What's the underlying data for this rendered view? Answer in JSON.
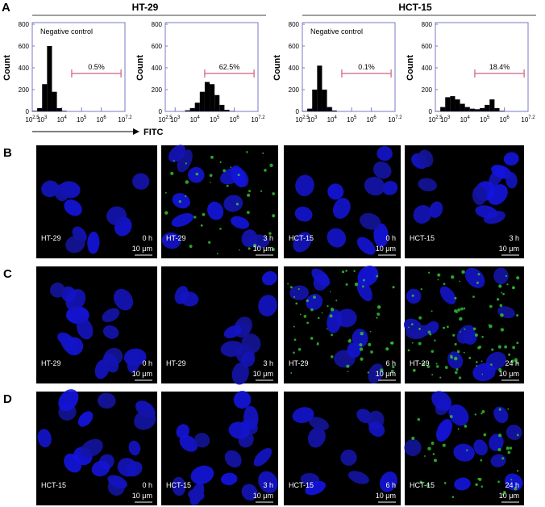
{
  "panel_a": {
    "label": "A",
    "y_axis_label": "Count",
    "x_axis_label": "FITC",
    "xtick_base": "10",
    "yticks": [
      0,
      200,
      400,
      600,
      800
    ],
    "ylim": [
      0,
      800
    ],
    "xlim": [
      2.5,
      7.2
    ],
    "xticks": [
      2.5,
      3,
      4,
      5,
      6,
      7.2
    ],
    "groups": [
      {
        "title": "HT-29",
        "plots": [
          {
            "annotation": "Negative control",
            "gate_label": "0.5%",
            "gate": [
              4.5,
              7.0
            ],
            "bins": [
              2.5,
              2.75,
              3.0,
              3.25,
              3.5,
              3.75,
              4.0,
              4.25,
              4.5,
              4.75,
              5.0,
              5.25,
              5.5,
              5.75,
              6.0,
              6.25,
              6.5,
              6.75,
              7.0
            ],
            "counts": [
              5,
              30,
              250,
              600,
              180,
              30,
              5,
              0,
              0,
              0,
              0,
              0,
              0,
              0,
              0,
              0,
              0,
              0
            ]
          },
          {
            "gate_label": "62.5%",
            "gate": [
              4.5,
              7.0
            ],
            "bins": [
              2.5,
              2.75,
              3.0,
              3.25,
              3.5,
              3.75,
              4.0,
              4.25,
              4.5,
              4.75,
              5.0,
              5.25,
              5.5,
              5.75,
              6.0,
              6.25,
              6.5,
              6.75,
              7.0
            ],
            "counts": [
              0,
              0,
              0,
              0,
              10,
              30,
              80,
              180,
              270,
              250,
              150,
              60,
              15,
              3,
              0,
              0,
              0,
              0
            ]
          }
        ]
      },
      {
        "title": "HCT-15",
        "plots": [
          {
            "annotation": "Negative control",
            "gate_label": "0.1%",
            "gate": [
              4.5,
              7.0
            ],
            "bins": [
              2.5,
              2.75,
              3.0,
              3.25,
              3.5,
              3.75,
              4.0,
              4.25,
              4.5,
              4.75,
              5.0,
              5.25,
              5.5,
              5.75,
              6.0,
              6.25,
              6.5,
              6.75,
              7.0
            ],
            "counts": [
              3,
              25,
              200,
              420,
              200,
              40,
              8,
              0,
              0,
              0,
              0,
              0,
              0,
              0,
              0,
              0,
              0,
              0
            ]
          },
          {
            "gate_label": "18.4%",
            "gate": [
              4.5,
              7.0
            ],
            "bins": [
              2.5,
              2.75,
              3.0,
              3.25,
              3.5,
              3.75,
              4.0,
              4.25,
              4.5,
              4.75,
              5.0,
              5.25,
              5.5,
              5.75,
              6.0,
              6.25,
              6.5,
              6.75,
              7.0
            ],
            "counts": [
              2,
              40,
              130,
              140,
              110,
              70,
              40,
              25,
              20,
              30,
              60,
              110,
              30,
              5,
              0,
              0,
              0,
              0
            ]
          }
        ]
      }
    ]
  },
  "scale_bar": "10 μm",
  "image_panels": [
    {
      "label": "B",
      "images": [
        {
          "cell_line": "HT-29",
          "time": "0 h"
        },
        {
          "cell_line": "HT-29",
          "time": "3 h"
        },
        {
          "cell_line": "HCT-15",
          "time": "0 h"
        },
        {
          "cell_line": "HCT-15",
          "time": "3 h"
        }
      ]
    },
    {
      "label": "C",
      "images": [
        {
          "cell_line": "HT-29",
          "time": "0 h"
        },
        {
          "cell_line": "HT-29",
          "time": "3 h"
        },
        {
          "cell_line": "HT-29",
          "time": "6 h"
        },
        {
          "cell_line": "HT-29",
          "time": "24 h"
        }
      ]
    },
    {
      "label": "D",
      "images": [
        {
          "cell_line": "HCT-15",
          "time": "0 h"
        },
        {
          "cell_line": "HCT-15",
          "time": "3 h"
        },
        {
          "cell_line": "HCT-15",
          "time": "6 h"
        },
        {
          "cell_line": "HCT-15",
          "time": "24 h"
        }
      ]
    }
  ]
}
